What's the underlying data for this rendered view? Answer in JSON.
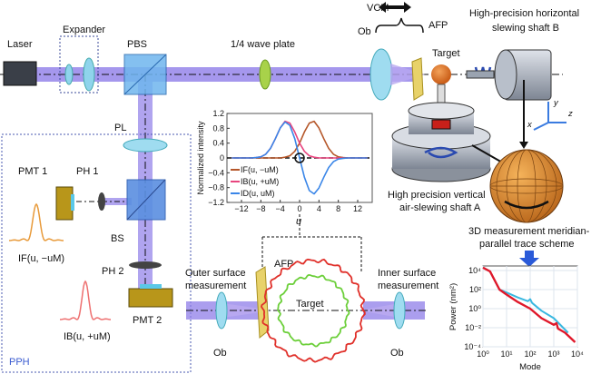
{
  "labels": {
    "laser": "Laser",
    "expander": "Expander",
    "pbs": "PBS",
    "wave_plate": "1/4 wave plate",
    "vcm": "VCM",
    "ob_top": "Ob",
    "afp_top": "AFP",
    "target_top": "Target",
    "shaft_b_line1": "High-precision horizontal",
    "shaft_b_line2": "slewing shaft B",
    "shaft_a_line1": "High precision vertical",
    "shaft_a_line2": "air-slewing shaft A",
    "axis_x": "x",
    "axis_y": "y",
    "axis_z": "z",
    "scheme_line1": "3D measurement meridian-",
    "scheme_line2": "parallel trace scheme",
    "pl": "PL",
    "pmt1": "PMT 1",
    "ph1": "PH 1",
    "bs": "BS",
    "ph2": "PH 2",
    "pmt2": "PMT 2",
    "if_curve": "IF(u, −uM)",
    "ib_curve": "IB(u, +uM)",
    "pph": "PPH",
    "outer_line1": "Outer surface",
    "outer_line2": "measurement",
    "afp_bottom": "AFP",
    "target_bottom": "Target",
    "inner_line1": "Inner surface",
    "inner_line2": "measurement",
    "ob_left": "Ob",
    "ob_right": "Ob"
  },
  "colors": {
    "beam": "#8f7de8",
    "if": "#b5572a",
    "ib": "#e8457e",
    "id": "#3a86e8",
    "pph_border": "#4a5ab0",
    "target_outer": "#e0302a",
    "target_inner": "#6ccf3a",
    "power_red": "#e0182a",
    "power_blue": "#3ab8e0"
  },
  "chart_data": [
    {
      "type": "line",
      "xlabel": "u",
      "ylabel": "Normalized intensity",
      "xlim": [
        -15,
        15
      ],
      "ylim": [
        -1.2,
        1.2
      ],
      "xticks": [
        "−12",
        "−8",
        "−4",
        "0",
        "4",
        "8",
        "12"
      ],
      "xtick_values": [
        -12,
        -8,
        -4,
        0,
        4,
        8,
        12
      ],
      "yticks": [
        "1.2",
        "0.8",
        "0.4",
        "0",
        "−0.4",
        "−0.8",
        "−1.2"
      ],
      "ytick_values": [
        1.2,
        0.8,
        0.4,
        0,
        -0.4,
        -0.8,
        -1.2
      ],
      "legend_placement": "lower-left",
      "x": [
        -14,
        -13,
        -12,
        -11,
        -10,
        -9,
        -8,
        -7,
        -6,
        -5,
        -4,
        -3,
        -2,
        -1,
        0,
        1,
        2,
        3,
        4,
        5,
        6,
        7,
        8,
        9,
        10,
        11,
        12,
        13,
        14
      ],
      "series": [
        {
          "name": "IF(u, −uM)",
          "color": "#b5572a",
          "values": [
            0,
            0,
            0,
            0,
            0,
            0,
            0,
            0,
            0,
            0,
            0,
            0.02,
            0.06,
            0.18,
            0.4,
            0.7,
            0.94,
            0.99,
            0.81,
            0.52,
            0.26,
            0.1,
            0.03,
            0.01,
            0,
            0,
            0,
            0,
            0
          ]
        },
        {
          "name": "IB(u, +uM)",
          "color": "#e8457e",
          "values": [
            0,
            0,
            0,
            0,
            0,
            0.01,
            0.03,
            0.1,
            0.26,
            0.52,
            0.81,
            0.99,
            0.94,
            0.7,
            0.4,
            0.18,
            0.06,
            0.02,
            0,
            0,
            0,
            0,
            0,
            0,
            0,
            0,
            0,
            0,
            0
          ]
        },
        {
          "name": "ID(u, uM)",
          "color": "#3a86e8",
          "values": [
            0,
            0,
            0,
            0,
            0,
            0.01,
            0.03,
            0.1,
            0.26,
            0.52,
            0.81,
            0.97,
            0.88,
            0.52,
            0,
            -0.52,
            -0.88,
            -0.97,
            -0.81,
            -0.52,
            -0.26,
            -0.1,
            -0.03,
            -0.01,
            0,
            0,
            0,
            0,
            0
          ]
        }
      ]
    },
    {
      "type": "line",
      "xlabel": "Mode",
      "ylabel": "Power (nm²)",
      "xscale": "log",
      "yscale": "log",
      "xlim": [
        1,
        10000
      ],
      "ylim": [
        0.0001,
        30000
      ],
      "grid": true,
      "xticks": [
        "10⁰",
        "10¹",
        "10²",
        "10³",
        "10⁴"
      ],
      "xtick_values": [
        1,
        10,
        100,
        1000,
        10000
      ],
      "yticks": [
        "10⁴",
        "10²",
        "10⁰",
        "10⁻²",
        "10⁻⁴"
      ],
      "ytick_values": [
        10000,
        100,
        1,
        0.01,
        0.0001
      ],
      "series": [
        {
          "color": "#3ab8e0",
          "x": [
            1,
            2,
            5,
            10,
            30,
            80,
            100,
            120,
            300,
            1000,
            4000
          ],
          "values": [
            20000,
            8000,
            100,
            50,
            15,
            6,
            10,
            4,
            0.6,
            0.1,
            0.003
          ]
        },
        {
          "color": "#e0182a",
          "x": [
            1,
            2,
            5,
            10,
            30,
            100,
            300,
            1000,
            1300,
            1500,
            3000,
            8000
          ],
          "values": [
            20000,
            8000,
            100,
            30,
            5,
            1,
            0.1,
            0.02,
            0.03,
            0.008,
            0.003,
            0.0003
          ]
        }
      ]
    }
  ]
}
